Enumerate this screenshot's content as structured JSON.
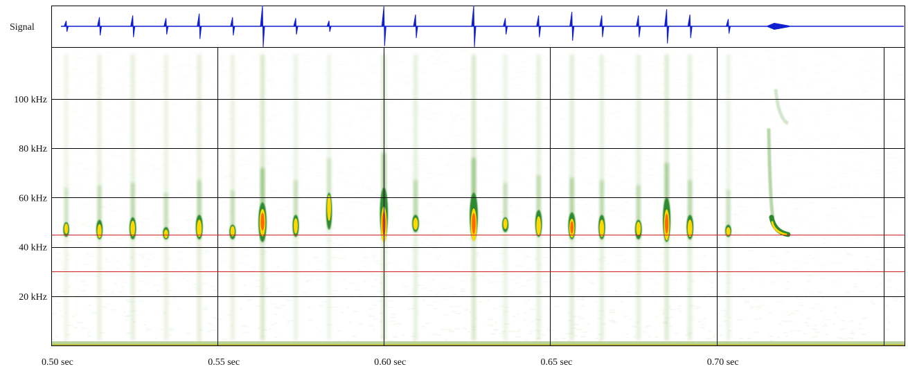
{
  "chart_data": {
    "type": "heatmap",
    "signal_label": "Signal",
    "x": {
      "unit": "sec",
      "range": [
        0.5,
        0.7567
      ],
      "ticks": [
        {
          "value": 0.5,
          "label": "0.50 sec"
        },
        {
          "value": 0.55,
          "label": "0.55 sec"
        },
        {
          "value": 0.6,
          "label": "0.60 sec"
        },
        {
          "value": 0.65,
          "label": "0.65 sec"
        },
        {
          "value": 0.7,
          "label": "0.70 sec"
        }
      ]
    },
    "y": {
      "unit": "kHz",
      "range": [
        0,
        121
      ],
      "ticks": [
        {
          "value": 20,
          "label": "20 kHz"
        },
        {
          "value": 40,
          "label": "40 kHz"
        },
        {
          "value": 60,
          "label": "60 kHz"
        },
        {
          "value": 80,
          "label": "80 kHz"
        },
        {
          "value": 100,
          "label": "100 kHz"
        }
      ]
    },
    "grid": true,
    "reference_lines_khz": [
      45,
      30
    ],
    "calls": [
      {
        "t": 0.5045,
        "f_peak": 47,
        "f_top": 50,
        "f_bot": 44,
        "amp": 0.15
      },
      {
        "t": 0.5145,
        "f_peak": 46,
        "f_top": 51,
        "f_bot": 43,
        "amp": 0.35
      },
      {
        "t": 0.5245,
        "f_peak": 47,
        "f_top": 52,
        "f_bot": 43,
        "amp": 0.45
      },
      {
        "t": 0.5345,
        "f_peak": 45,
        "f_top": 48,
        "f_bot": 43,
        "amp": 0.3
      },
      {
        "t": 0.5445,
        "f_peak": 47,
        "f_top": 53,
        "f_bot": 43,
        "amp": 0.55
      },
      {
        "t": 0.5545,
        "f_peak": 46,
        "f_top": 49,
        "f_bot": 43,
        "amp": 0.35
      },
      {
        "t": 0.5635,
        "f_peak": 49,
        "f_top": 58,
        "f_bot": 42,
        "amp": 1.0
      },
      {
        "t": 0.5735,
        "f_peak": 48,
        "f_top": 53,
        "f_bot": 44,
        "amp": 0.3
      },
      {
        "t": 0.5835,
        "f_peak": 55,
        "f_top": 62,
        "f_bot": 47,
        "amp": 0.15
      },
      {
        "t": 0.6,
        "f_peak": 48,
        "f_top": 64,
        "f_bot": 43,
        "amp": 0.95
      },
      {
        "t": 0.6095,
        "f_peak": 49,
        "f_top": 53,
        "f_bot": 46,
        "amp": 0.5
      },
      {
        "t": 0.627,
        "f_peak": 48,
        "f_top": 62,
        "f_bot": 43,
        "amp": 1.0
      },
      {
        "t": 0.6365,
        "f_peak": 49,
        "f_top": 52,
        "f_bot": 46,
        "amp": 0.3
      },
      {
        "t": 0.6465,
        "f_peak": 48,
        "f_top": 55,
        "f_bot": 44,
        "amp": 0.45
      },
      {
        "t": 0.6565,
        "f_peak": 47,
        "f_top": 54,
        "f_bot": 43,
        "amp": 0.65
      },
      {
        "t": 0.6655,
        "f_peak": 47,
        "f_top": 53,
        "f_bot": 43,
        "amp": 0.45
      },
      {
        "t": 0.6765,
        "f_peak": 47,
        "f_top": 51,
        "f_bot": 43,
        "amp": 0.45
      },
      {
        "t": 0.685,
        "f_peak": 48,
        "f_top": 60,
        "f_bot": 42,
        "amp": 0.8
      },
      {
        "t": 0.692,
        "f_peak": 47,
        "f_top": 53,
        "f_bot": 43,
        "amp": 0.5
      },
      {
        "t": 0.7035,
        "f_peak": 46,
        "f_top": 49,
        "f_bot": 44,
        "amp": 0.25
      }
    ],
    "fm_sweep": {
      "t_start": 0.7165,
      "t_end": 0.7215,
      "f_start": 52,
      "f_end": 45,
      "amp": 0.6
    },
    "colors": {
      "signal": "#1020d0",
      "grid": "#000000",
      "reference_line": "#cc2020",
      "background": "#ffffff",
      "spectrogram_low": "#cfe3b6",
      "spectrogram_mid": "#2f8a2f",
      "spectrogram_high": "#ffd800",
      "spectrogram_peak": "#ff6a00"
    }
  }
}
